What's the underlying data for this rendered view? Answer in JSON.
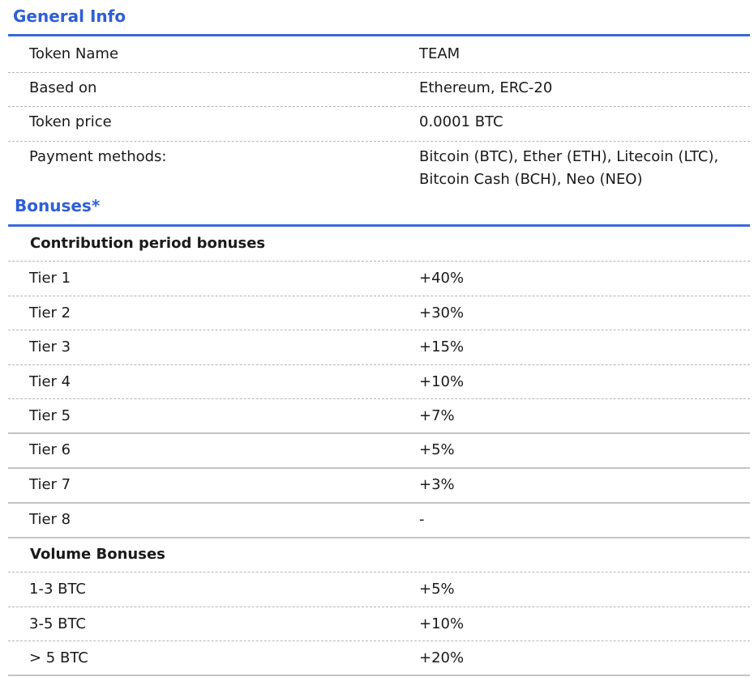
{
  "general": {
    "title": "General Info",
    "rows": [
      {
        "label": "Token Name",
        "value": "TEAM"
      },
      {
        "label": "Based on",
        "value": "Ethereum, ERC-20"
      },
      {
        "label": "Token price",
        "value": "0.0001 BTC"
      },
      {
        "label": "Payment methods:",
        "value_line1": "Bitcoin (BTC), Ether (ETH), Litecoin (LTC),",
        "value_line2": "Bitcoin Cash (BCH), Neo (NEO)"
      }
    ]
  },
  "bonuses": {
    "title": "Bonuses*",
    "contribution_heading": "Contribution period bonuses",
    "tiers": [
      {
        "label": "Tier 1",
        "value": "+40%"
      },
      {
        "label": "Tier 2",
        "value": "+30%"
      },
      {
        "label": "Tier 3",
        "value": "+15%"
      },
      {
        "label": "Tier 4",
        "value": "+10%"
      },
      {
        "label": "Tier 5",
        "value": "+7%"
      },
      {
        "label": "Tier 6",
        "value": "+5%"
      },
      {
        "label": "Tier 7",
        "value": "+3%"
      },
      {
        "label": "Tier 8",
        "value": "-"
      }
    ],
    "volume_heading": "Volume Bonuses",
    "volume": [
      {
        "label": "1-3 BTC",
        "value": "+5%"
      },
      {
        "label": "3-5 BTC",
        "value": "+10%"
      },
      {
        "label": "> 5 BTC",
        "value": "+20%"
      }
    ]
  }
}
